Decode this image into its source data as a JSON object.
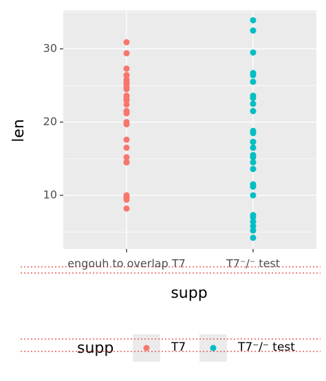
{
  "chart_data": {
    "type": "strip",
    "y_label": "len",
    "x_label": "supp",
    "categories": [
      "engouh to overlap T7",
      "T7⁻/⁻ test"
    ],
    "ylim": [
      2.68,
      35.26
    ],
    "yticks": [
      10,
      20,
      30
    ],
    "minor_yticks": [
      5,
      15,
      25,
      35
    ],
    "grid": true,
    "legend_title": "supp",
    "series": [
      {
        "name": "T7",
        "color": "#F8766D",
        "values": [
          15.2,
          21.5,
          17.6,
          9.7,
          14.5,
          10,
          8.2,
          9.4,
          16.5,
          9.7,
          19.7,
          23.3,
          23.6,
          26.4,
          20,
          25.2,
          25.8,
          21.2,
          14.5,
          27.3,
          25.5,
          26.4,
          22.4,
          24.5,
          24.8,
          30.9,
          26.4,
          27.3,
          29.4,
          23
        ]
      },
      {
        "name": "T7⁻/⁻ test",
        "color": "#00BFC4",
        "values": [
          4.2,
          11.5,
          7.3,
          5.8,
          6.4,
          10,
          11.2,
          11.2,
          5.2,
          7,
          16.5,
          16.5,
          15.2,
          17.3,
          22.5,
          17.3,
          13.6,
          14.5,
          18.8,
          15.5,
          23.6,
          18.5,
          33.9,
          25.5,
          26.4,
          32.5,
          26.7,
          21.5,
          23.3,
          29.5
        ]
      }
    ]
  }
}
